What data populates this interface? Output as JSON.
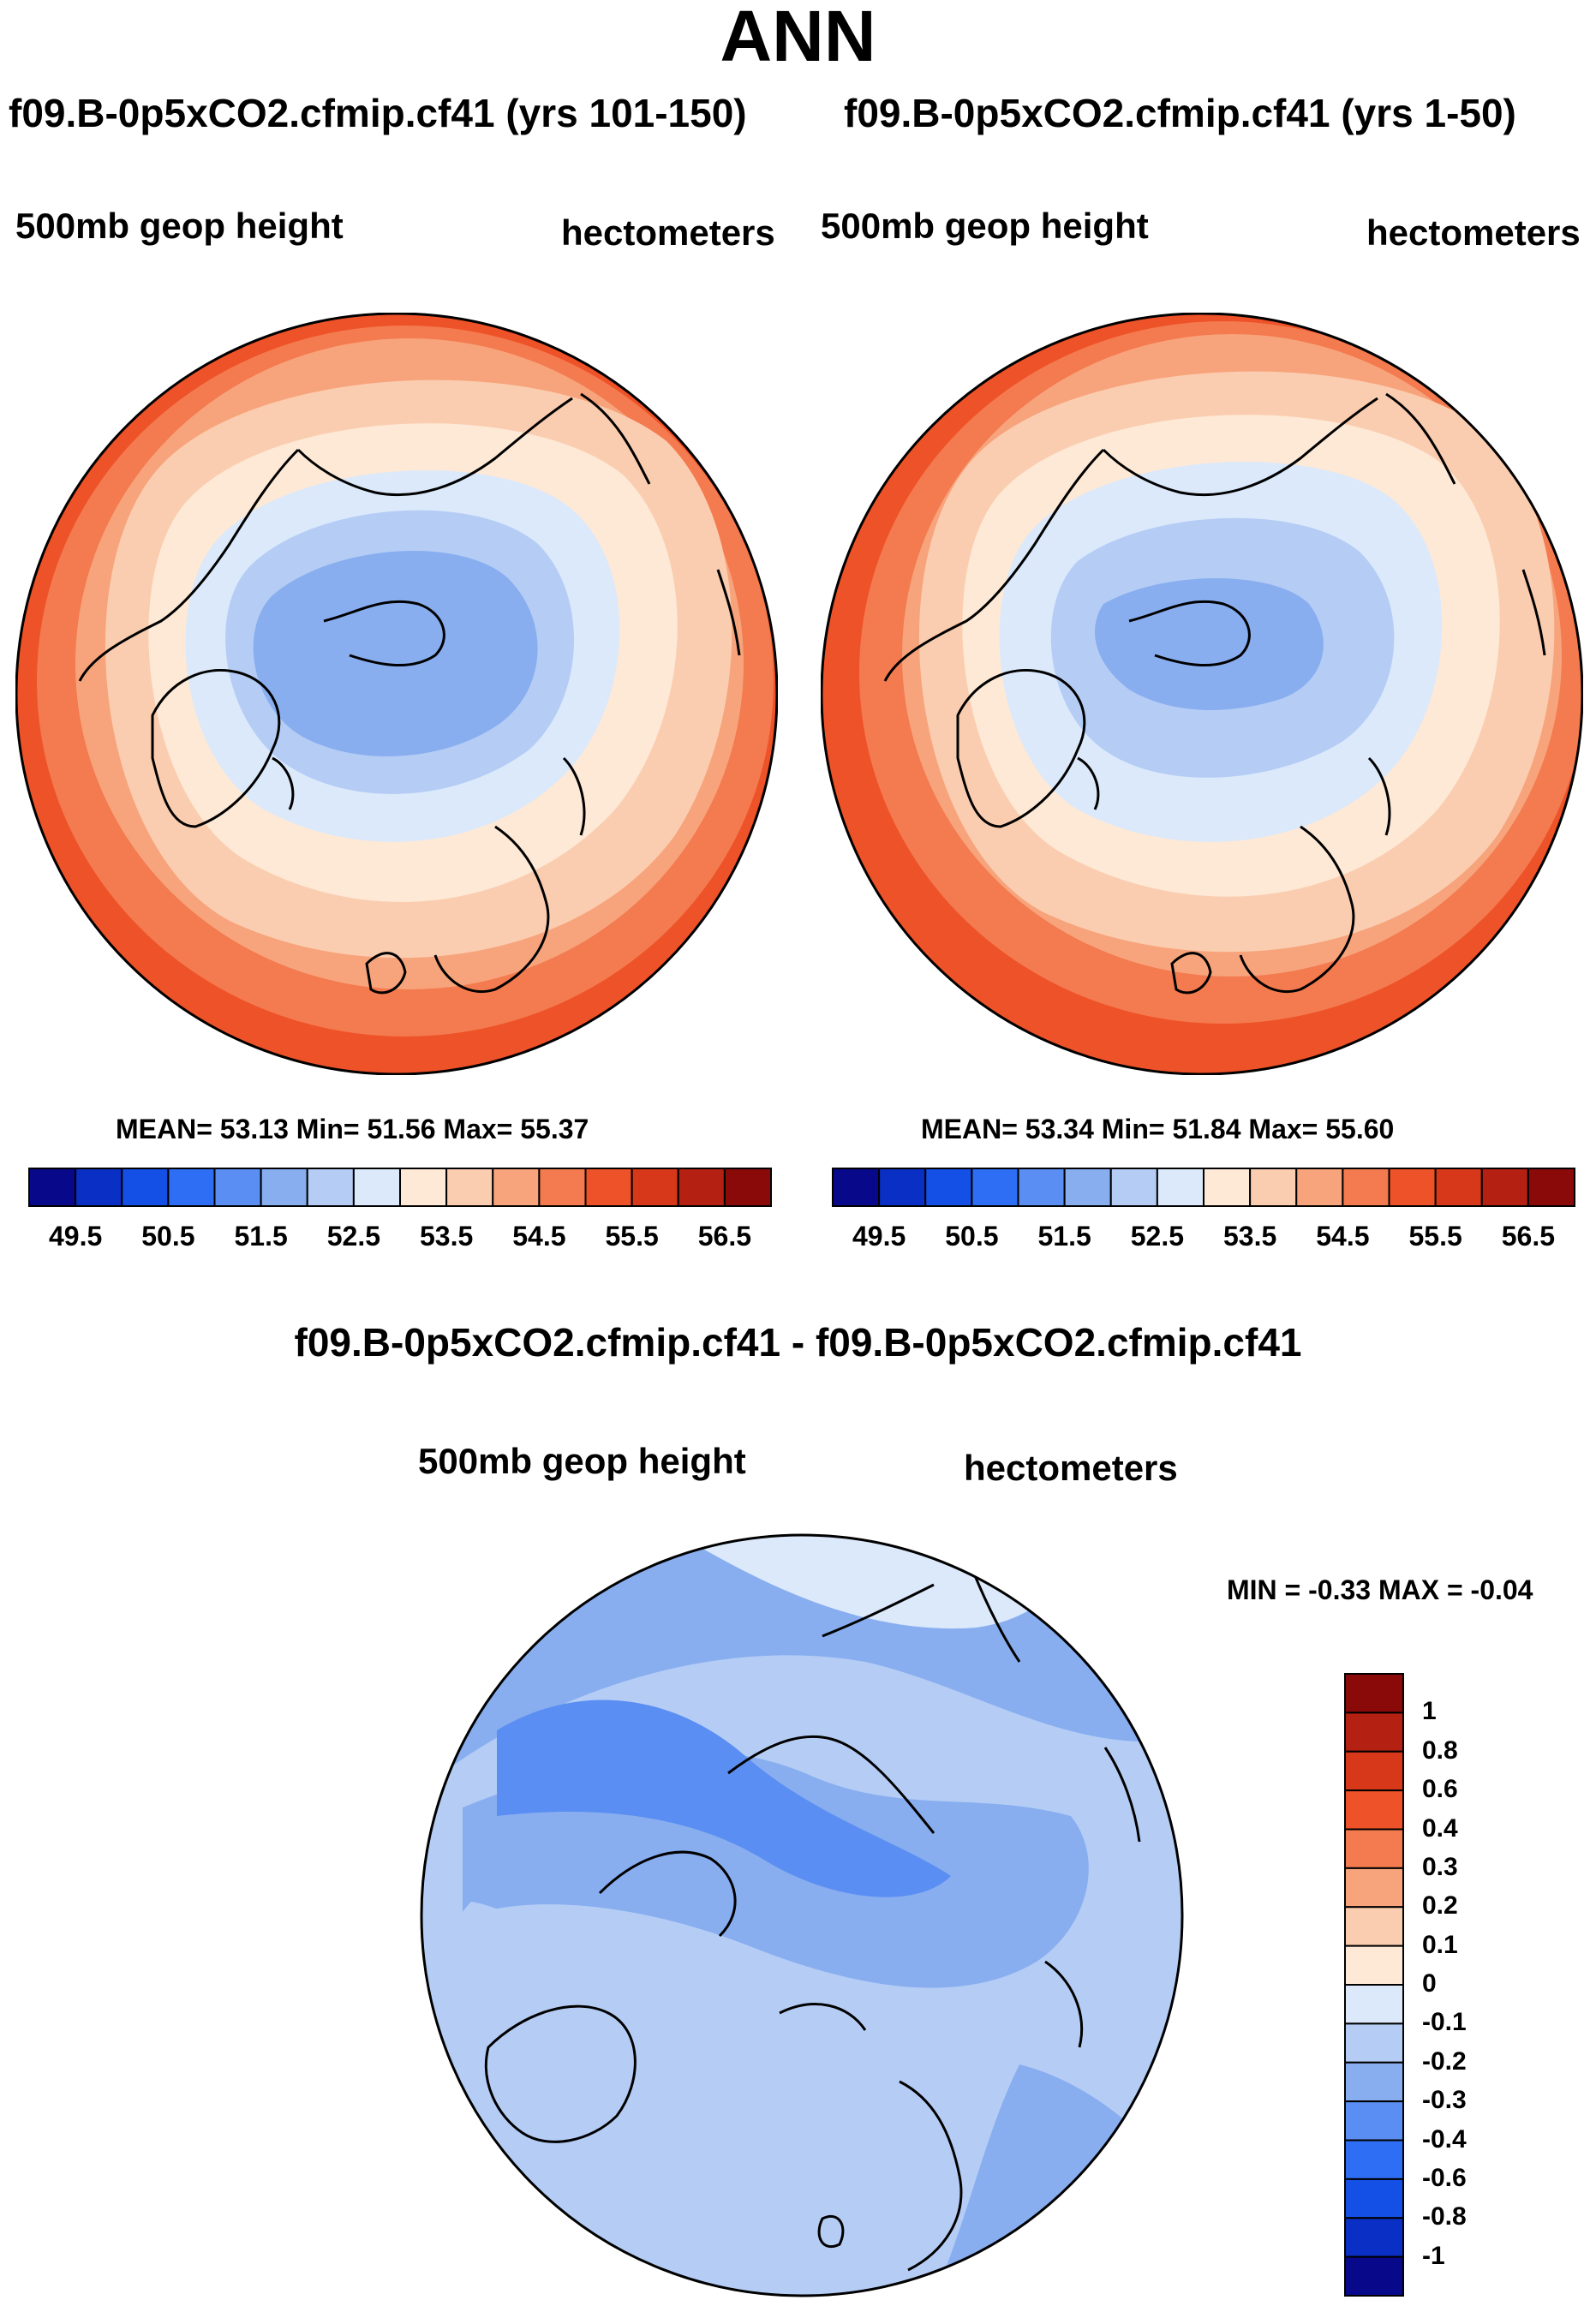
{
  "page_title": "ANN",
  "panels": [
    {
      "title": "f09.B-0p5xCO2.cfmip.cf41 (yrs 101-150)",
      "left_label": "500mb geop height",
      "right_label": "hectometers",
      "stats": "MEAN=  53.13  Min=  51.56  Max=  55.37"
    },
    {
      "title": "f09.B-0p5xCO2.cfmip.cf41 (yrs 1-50)",
      "left_label": "500mb geop height",
      "right_label": "hectometers",
      "stats": "MEAN=  53.34  Min=  51.84  Max=  55.60"
    }
  ],
  "abs_colorbar": {
    "colors": [
      "#08088a",
      "#0a2fc4",
      "#1550e6",
      "#2e6ef5",
      "#5a8ef2",
      "#88aef0",
      "#b5cdf5",
      "#dbe9fb",
      "#fde9d6",
      "#fbcdb0",
      "#f7a47c",
      "#f47a4f",
      "#ee5228",
      "#d8381a",
      "#b42113",
      "#8a0a0a"
    ],
    "labels": [
      "49.5",
      "50.5",
      "51.5",
      "52.5",
      "53.5",
      "54.5",
      "55.5",
      "56.5"
    ]
  },
  "diff_panel": {
    "title": "f09.B-0p5xCO2.cfmip.cf41 - f09.B-0p5xCO2.cfmip.cf41",
    "left_label": "500mb geop height",
    "right_label": "hectometers",
    "minmax": "MIN =  -0.33 MAX =  -0.04"
  },
  "diff_colorbar": {
    "colors": [
      "#8a0a0a",
      "#b42113",
      "#d8381a",
      "#ee5228",
      "#f47a4f",
      "#f7a47c",
      "#fbcdb0",
      "#fde9d6",
      "#dbe9fb",
      "#b5cdf5",
      "#88aef0",
      "#5a8ef2",
      "#2e6ef5",
      "#1550e6",
      "#0a2fc4",
      "#08088a"
    ],
    "labels": [
      "1",
      "0.8",
      "0.6",
      "0.4",
      "0.3",
      "0.2",
      "0.1",
      "0",
      "-0.1",
      "-0.2",
      "-0.3",
      "-0.4",
      "-0.6",
      "-0.8",
      "-1"
    ]
  }
}
